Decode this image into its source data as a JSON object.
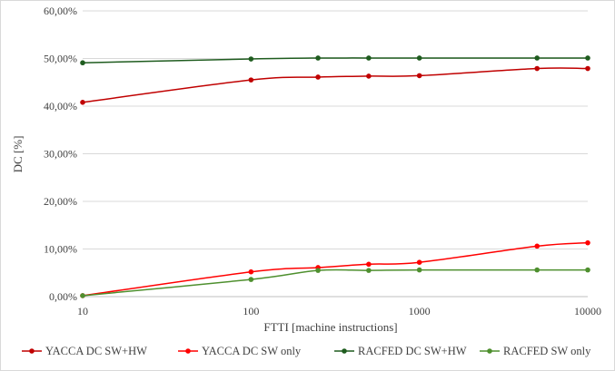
{
  "chart_data": {
    "type": "line",
    "xlabel": "FTTI [machine instructions]",
    "ylabel": "DC [%]",
    "x_scale": "log",
    "xlim": [
      10,
      10000
    ],
    "ylim": [
      0,
      0.6
    ],
    "x_ticks": [
      "10",
      "100",
      "1000",
      "10000"
    ],
    "y_ticks": [
      "0,00%",
      "10,00%",
      "20,00%",
      "30,00%",
      "40,00%",
      "50,00%",
      "60,00%"
    ],
    "grid": "horizontal",
    "legend_position": "bottom",
    "x": [
      10,
      100,
      250,
      500,
      1000,
      5000,
      10000
    ],
    "series": [
      {
        "name": "YACCA DC SW+HW",
        "color": "#c00000",
        "values": [
          0.408,
          0.455,
          0.461,
          0.463,
          0.464,
          0.479,
          0.479
        ]
      },
      {
        "name": "YACCA DC SW only",
        "color": "#ff0000",
        "values": [
          0.002,
          0.052,
          0.061,
          0.068,
          0.072,
          0.106,
          0.113
        ]
      },
      {
        "name": "RACFED DC SW+HW",
        "color": "#1f5c1f",
        "values": [
          0.491,
          0.499,
          0.501,
          0.501,
          0.501,
          0.501,
          0.501
        ]
      },
      {
        "name": "RACFED SW only",
        "color": "#4e8f2e",
        "values": [
          0.002,
          0.036,
          0.055,
          0.055,
          0.056,
          0.056,
          0.056
        ]
      }
    ]
  }
}
